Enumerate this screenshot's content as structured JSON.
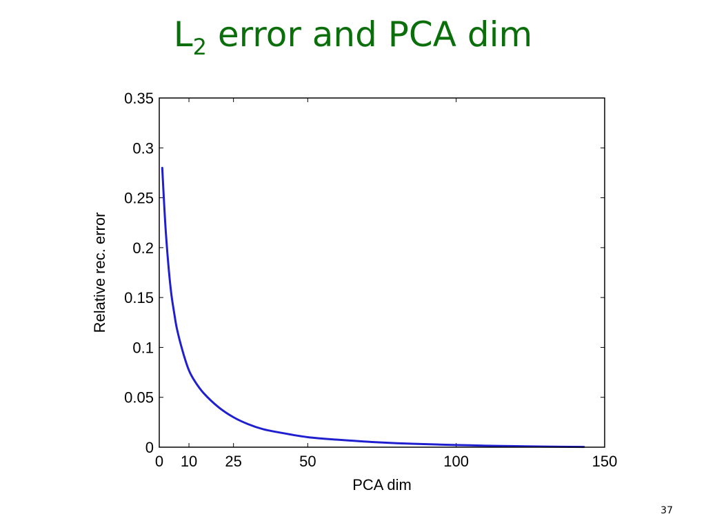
{
  "slide": {
    "title_main": "L",
    "title_sub": "2",
    "title_rest": " error and PCA dim",
    "page_number": "37"
  },
  "colors": {
    "title": "#0a6e0a",
    "series": "#1f1fcf"
  },
  "chart_data": {
    "type": "line",
    "title": "",
    "xlabel": "PCA dim",
    "ylabel": "Relative rec. error",
    "xlim": [
      0,
      150
    ],
    "ylim": [
      0,
      0.35
    ],
    "xticks": [
      0,
      10,
      25,
      50,
      100,
      150
    ],
    "yticks": [
      0,
      0.05,
      0.1,
      0.15,
      0.2,
      0.25,
      0.3,
      0.35
    ],
    "xtick_labels": [
      "0",
      "10",
      "25",
      "50",
      "100",
      "150"
    ],
    "ytick_labels": [
      "0",
      "0.05",
      "0.1",
      "0.15",
      "0.2",
      "0.25",
      "0.3",
      "0.35"
    ],
    "grid": false,
    "series": [
      {
        "x": [
          1,
          2,
          3,
          4,
          5,
          6,
          8,
          10,
          12,
          15,
          20,
          25,
          30,
          35,
          40,
          50,
          60,
          70,
          80,
          90,
          100,
          110,
          120,
          130,
          143
        ],
        "y": [
          0.28,
          0.225,
          0.185,
          0.155,
          0.135,
          0.118,
          0.095,
          0.077,
          0.066,
          0.054,
          0.04,
          0.03,
          0.023,
          0.018,
          0.015,
          0.01,
          0.0075,
          0.0055,
          0.004,
          0.003,
          0.0022,
          0.0015,
          0.001,
          0.0006,
          0.0003
        ]
      }
    ]
  }
}
